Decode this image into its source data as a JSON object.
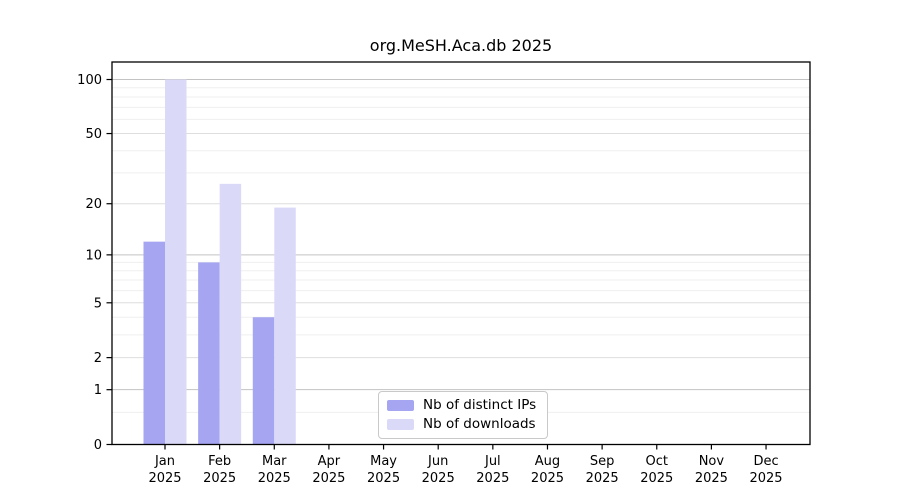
{
  "chart_data": {
    "type": "bar",
    "title": "org.MeSH.Aca.db 2025",
    "xlabel": "",
    "ylabel": "",
    "categories": [
      "Jan 2025",
      "Feb 2025",
      "Mar 2025",
      "Apr 2025",
      "May 2025",
      "Jun 2025",
      "Jul 2025",
      "Aug 2025",
      "Sep 2025",
      "Oct 2025",
      "Nov 2025",
      "Dec 2025"
    ],
    "series": [
      {
        "name": "Nb of distinct IPs",
        "color": "#a5a5f1",
        "values": [
          12,
          9,
          4,
          0,
          0,
          0,
          0,
          0,
          0,
          0,
          0,
          0
        ]
      },
      {
        "name": "Nb of downloads",
        "color": "#dadaf8",
        "values": [
          100,
          26,
          19,
          0,
          0,
          0,
          0,
          0,
          0,
          0,
          0,
          0
        ]
      }
    ],
    "yscale": "log1p",
    "ylim": [
      0,
      125
    ],
    "yticks": [
      100,
      50,
      20,
      10,
      5,
      2,
      1,
      0
    ],
    "grid": {
      "orientation": "horizontal",
      "minor_values": [
        0.5,
        3,
        4,
        6,
        7,
        8,
        9,
        30,
        40,
        60,
        70,
        80,
        90
      ],
      "strong_values": [
        1,
        10,
        100
      ]
    },
    "legend_position": "bottom-center",
    "colors": {
      "axis": "#000000",
      "tick_label": "#000000",
      "grid_major_strong": "#c3c3c3",
      "grid_major": "#dedede",
      "grid_minor": "#efefef"
    }
  }
}
